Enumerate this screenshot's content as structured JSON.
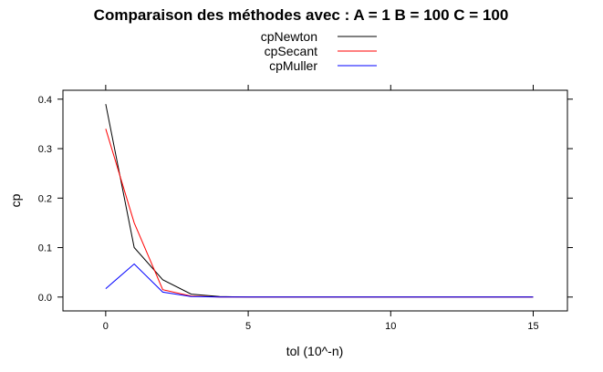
{
  "chart_data": {
    "type": "line",
    "title": "Comparaison des méthodes avec : A =  1 B =  100 C =  100",
    "xlabel": "tol (10^-n)",
    "ylabel": "cp",
    "xlim": [
      -1.5,
      16.2
    ],
    "ylim": [
      -0.028,
      0.418
    ],
    "xticks": [
      0,
      5,
      10,
      15
    ],
    "yticks": [
      0.0,
      0.1,
      0.2,
      0.3,
      0.4
    ],
    "xtick_labels": [
      "0",
      "5",
      "10",
      "15"
    ],
    "ytick_labels": [
      "0.0",
      "0.1",
      "0.2",
      "0.3",
      "0.4"
    ],
    "grid": false,
    "legend_position": "top",
    "x": [
      0,
      1,
      2,
      3,
      4,
      5,
      6,
      7,
      8,
      9,
      10,
      11,
      12,
      13,
      14,
      15
    ],
    "series": [
      {
        "name": "cpNewton",
        "color": "#000000",
        "values": [
          0.39,
          0.1,
          0.035,
          0.006,
          0.001,
          0,
          0,
          0,
          0,
          0,
          0,
          0,
          0,
          0,
          0,
          0
        ]
      },
      {
        "name": "cpSecant",
        "color": "#ff0000",
        "values": [
          0.34,
          0.15,
          0.015,
          0.002,
          0,
          0,
          0,
          0,
          0,
          0,
          0,
          0,
          0,
          0,
          0,
          0
        ]
      },
      {
        "name": "cpMuller",
        "color": "#0000ff",
        "values": [
          0.017,
          0.067,
          0.01,
          0.001,
          0,
          0,
          0,
          0,
          0,
          0,
          0,
          0,
          0,
          0,
          0,
          0
        ]
      }
    ]
  }
}
